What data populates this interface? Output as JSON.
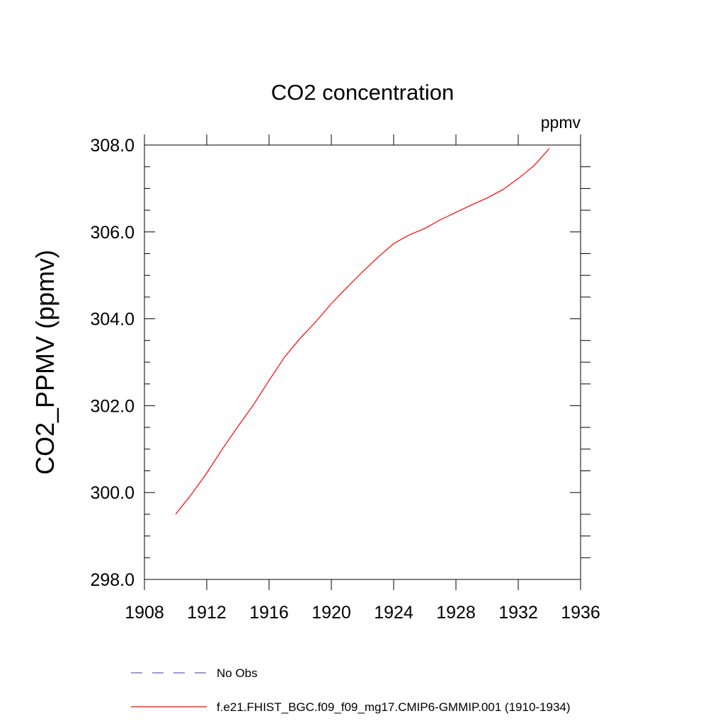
{
  "chart_data": {
    "type": "line",
    "title": "CO2 concentration",
    "units_label": "ppmv",
    "xlabel": "",
    "ylabel": "CO2_PPMV  (ppmv)",
    "xlim": [
      1908,
      1936
    ],
    "ylim": [
      298,
      308
    ],
    "x_ticks": [
      1908,
      1912,
      1916,
      1920,
      1924,
      1928,
      1932,
      1936
    ],
    "x_tick_labels": [
      "1908",
      "1912",
      "1916",
      "1920",
      "1924",
      "1928",
      "1932",
      "1936"
    ],
    "y_ticks": [
      298,
      300,
      302,
      304,
      306,
      308
    ],
    "y_tick_labels": [
      "298.0",
      "300.0",
      "302.0",
      "304.0",
      "306.0",
      "308.0"
    ],
    "grid": false,
    "legend_position": "bottom",
    "series": [
      {
        "name": "No Obs",
        "color": "#6a5acd",
        "dashed": true,
        "x": [],
        "y": []
      },
      {
        "name": "f.e21.FHIST_BGC.f09_f09_mg17.CMIP6-GMMIP.001 (1910-1934)",
        "color": "#ff0000",
        "dashed": false,
        "x": [
          1910,
          1911,
          1912,
          1913,
          1914,
          1915,
          1916,
          1917,
          1918,
          1919,
          1920,
          1921,
          1922,
          1923,
          1924,
          1925,
          1926,
          1927,
          1928,
          1929,
          1930,
          1931,
          1932,
          1933,
          1934
        ],
        "y": [
          299.5,
          299.95,
          300.45,
          301.0,
          301.52,
          302.02,
          302.58,
          303.12,
          303.55,
          303.93,
          304.35,
          304.72,
          305.08,
          305.42,
          305.73,
          305.93,
          306.08,
          306.28,
          306.45,
          306.62,
          306.78,
          306.97,
          307.23,
          307.52,
          307.92
        ]
      }
    ]
  }
}
